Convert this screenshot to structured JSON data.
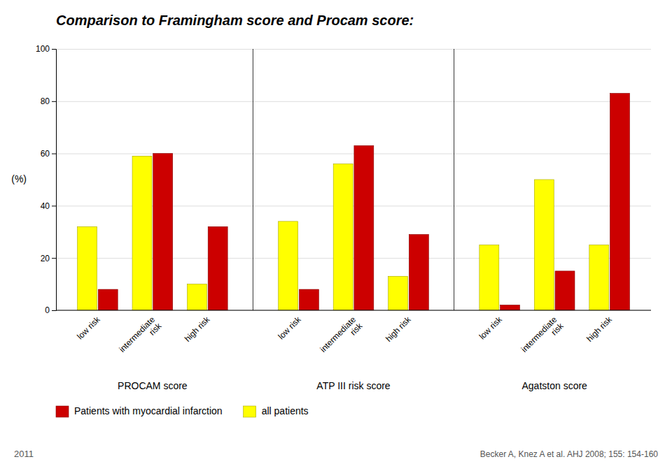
{
  "chart_data": {
    "type": "bar",
    "title": "Comparison to Framingham score and Procam score:",
    "ylabel": "(%)",
    "groups": [
      "PROCAM score",
      "ATP III risk score",
      "Agatston score"
    ],
    "categories": [
      "low risk",
      "intermediate\nrisk",
      "high risk"
    ],
    "series": [
      {
        "name": "all patients",
        "color": "#FFFF00",
        "values": [
          [
            32,
            59,
            10
          ],
          [
            34,
            56,
            13
          ],
          [
            25,
            50,
            25
          ]
        ]
      },
      {
        "name": "Patients with myocardial infarction",
        "color": "#CC0000",
        "values": [
          [
            8,
            60,
            32
          ],
          [
            8,
            63,
            29
          ],
          [
            2,
            15,
            83
          ]
        ]
      }
    ],
    "ylim": [
      0,
      100
    ],
    "yticks": [
      0,
      20,
      40,
      60,
      80,
      100
    ],
    "grid": true,
    "legend": "bottom",
    "annotations": [
      "Becker A, Knez A et al. AHJ 2008; 155: 154-160",
      "2011"
    ]
  }
}
